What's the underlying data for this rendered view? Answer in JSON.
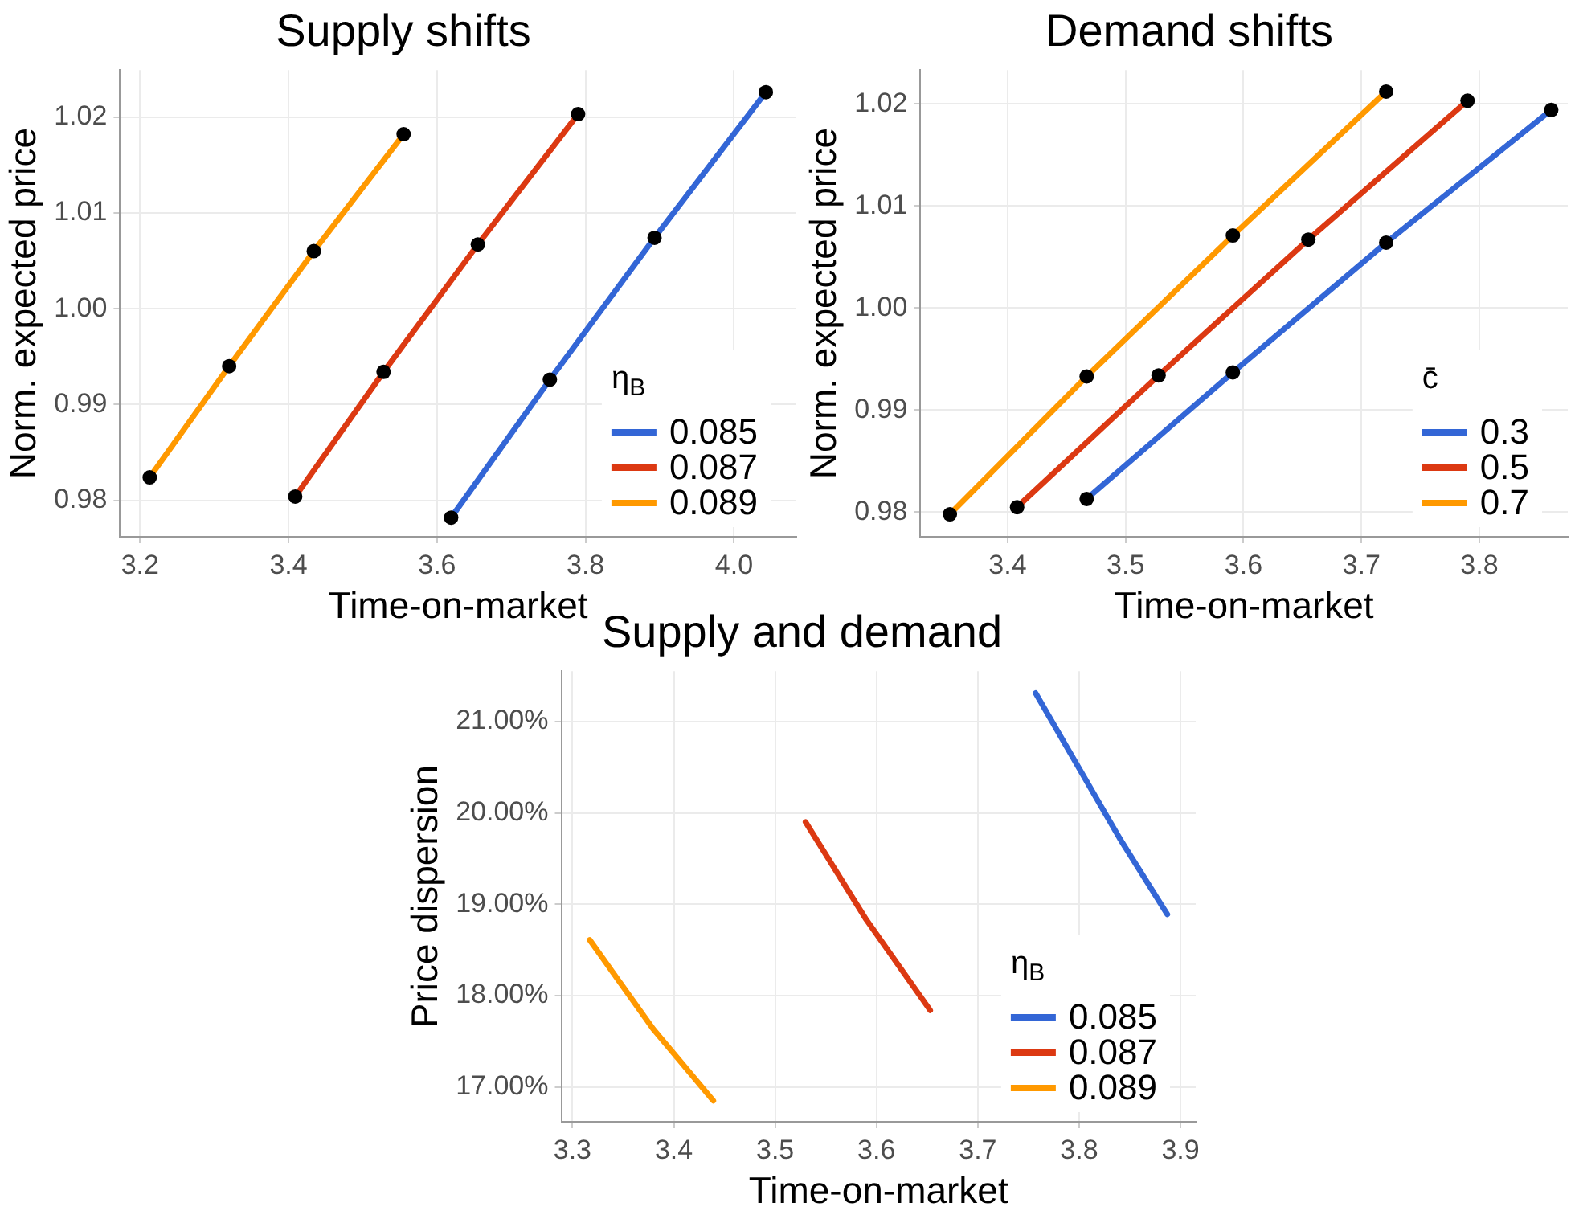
{
  "chart_data": [
    {
      "type": "line",
      "title": "Supply shifts",
      "xlabel": "Time-on-market",
      "ylabel": "Norm. expected price",
      "legend_title": "η$_{B}$",
      "legend": "bottom right",
      "grid": true,
      "marker": "circle",
      "line_style": "solid",
      "xlim": [
        3.173,
        4.084
      ],
      "ylim": [
        0.9762,
        1.0249
      ],
      "xticks": [
        3.2,
        3.4,
        3.6,
        3.8,
        {
          "value": 4,
          "label": "4.0"
        }
      ],
      "yticks": [
        0.98,
        0.99,
        {
          "value": 1,
          "label": "1.00"
        },
        1.01,
        1.02
      ],
      "series": [
        {
          "name": "0.085",
          "color": "#3366d6",
          "x": [
            3.619,
            3.752,
            3.893,
            4.043
          ],
          "values": [
            0.9782,
            0.9926,
            1.0074,
            1.0226
          ]
        },
        {
          "name": "0.087",
          "color": "#dc3912",
          "x": [
            3.409,
            3.528,
            3.655,
            3.79
          ],
          "values": [
            0.9804,
            0.9934,
            1.0067,
            1.0203
          ]
        },
        {
          "name": "0.089",
          "color": "#ff9900",
          "x": [
            3.213,
            3.32,
            3.434,
            3.555
          ],
          "values": [
            0.9824,
            0.994,
            1.006,
            1.0182
          ]
        }
      ]
    },
    {
      "type": "line",
      "title": "Demand shifts",
      "xlabel": "Time-on-market",
      "ylabel": "Norm. expected price",
      "legend_title": "c̄",
      "legend": "bottom right",
      "grid": true,
      "marker": "circle",
      "line_style": "solid",
      "xlim": [
        3.326,
        3.875
      ],
      "ylim": [
        0.9776,
        1.0233
      ],
      "xticks": [
        3.4,
        3.5,
        3.6,
        3.7,
        3.8
      ],
      "yticks": [
        0.98,
        0.99,
        {
          "value": 1,
          "label": "1.00"
        },
        1.01,
        1.02
      ],
      "series": [
        {
          "name": "0.3",
          "color": "#3366d6",
          "x": [
            3.467,
            3.591,
            3.721,
            3.861
          ],
          "values": [
            0.9813,
            0.9937,
            1.0064,
            1.0194
          ]
        },
        {
          "name": "0.5",
          "color": "#dc3912",
          "x": [
            3.408,
            3.528,
            3.655,
            3.79
          ],
          "values": [
            0.9805,
            0.9934,
            1.0067,
            1.0203
          ]
        },
        {
          "name": "0.7",
          "color": "#ff9900",
          "x": [
            3.351,
            3.467,
            3.591,
            3.721
          ],
          "values": [
            0.9798,
            0.9933,
            1.0071,
            1.0212
          ]
        }
      ]
    },
    {
      "type": "line",
      "title": "Supply and demand",
      "xlabel": "Time-on-market",
      "ylabel": "Price dispersion",
      "legend_title": "η$_{B}$",
      "legend": "bottom right",
      "grid": true,
      "marker": "none",
      "line_style": "solid",
      "xlim": [
        3.289,
        3.915
      ],
      "ylim": [
        16.62,
        21.55
      ],
      "xticks": [
        3.3,
        3.4,
        3.5,
        3.6,
        3.7,
        3.8,
        3.9
      ],
      "yticks": [
        {
          "value": 17,
          "label": "17.00%"
        },
        {
          "value": 18,
          "label": "18.00%"
        },
        {
          "value": 19,
          "label": "19.00%"
        },
        {
          "value": 20,
          "label": "20.00%"
        },
        {
          "value": 21,
          "label": "21.00%"
        }
      ],
      "series": [
        {
          "name": "0.085",
          "color": "#3366d6",
          "x": [
            3.757,
            3.793,
            3.84,
            3.887
          ],
          "values": [
            21.31,
            20.62,
            19.72,
            18.89
          ]
        },
        {
          "name": "0.087",
          "color": "#dc3912",
          "x": [
            3.53,
            3.59,
            3.653
          ],
          "values": [
            19.9,
            18.83,
            17.84
          ]
        },
        {
          "name": "0.089",
          "color": "#ff9900",
          "x": [
            3.317,
            3.38,
            3.439
          ],
          "values": [
            18.61,
            17.63,
            16.85
          ]
        }
      ]
    }
  ]
}
